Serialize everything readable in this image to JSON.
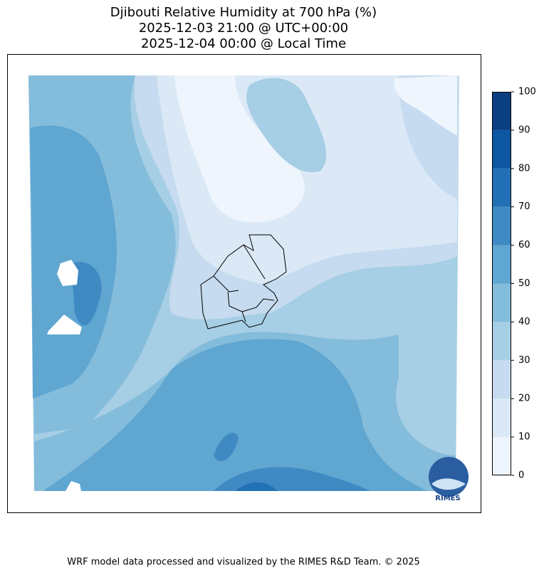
{
  "title": [
    "Djibouti Relative Humidity at 700 hPa (%)",
    "2025-12-03 21:00 @ UTC+00:00",
    "2025-12-04 00:00 @ Local Time"
  ],
  "colorbar": {
    "ticks": [
      0,
      10,
      20,
      30,
      40,
      50,
      60,
      70,
      80,
      90,
      100
    ],
    "colors": [
      "#eff5fc",
      "#dbe9f6",
      "#c6dbef",
      "#a6cee4",
      "#84bcdb",
      "#5fa6d1",
      "#3f8ac3",
      "#2270b5",
      "#0d56a1",
      "#0a3e80"
    ]
  },
  "logo": "RIMES",
  "footer": "WRF model data processed and visualized by the RIMES R&D Team. © 2025"
}
